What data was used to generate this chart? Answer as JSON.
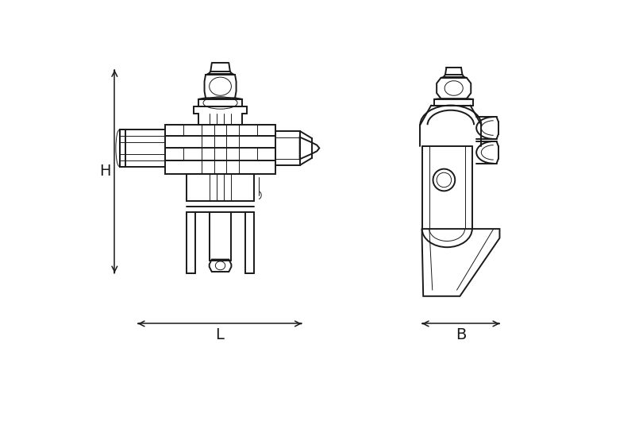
{
  "bg_color": "#ffffff",
  "line_color": "#1a1a1a",
  "lw_main": 1.4,
  "lw_thin": 0.7,
  "lw_dim": 1.1,
  "fig_width": 8.0,
  "fig_height": 5.4,
  "dpi": 100,
  "H_label": "H",
  "L_label": "L",
  "B_label": "B",
  "label_fontsize": 14
}
